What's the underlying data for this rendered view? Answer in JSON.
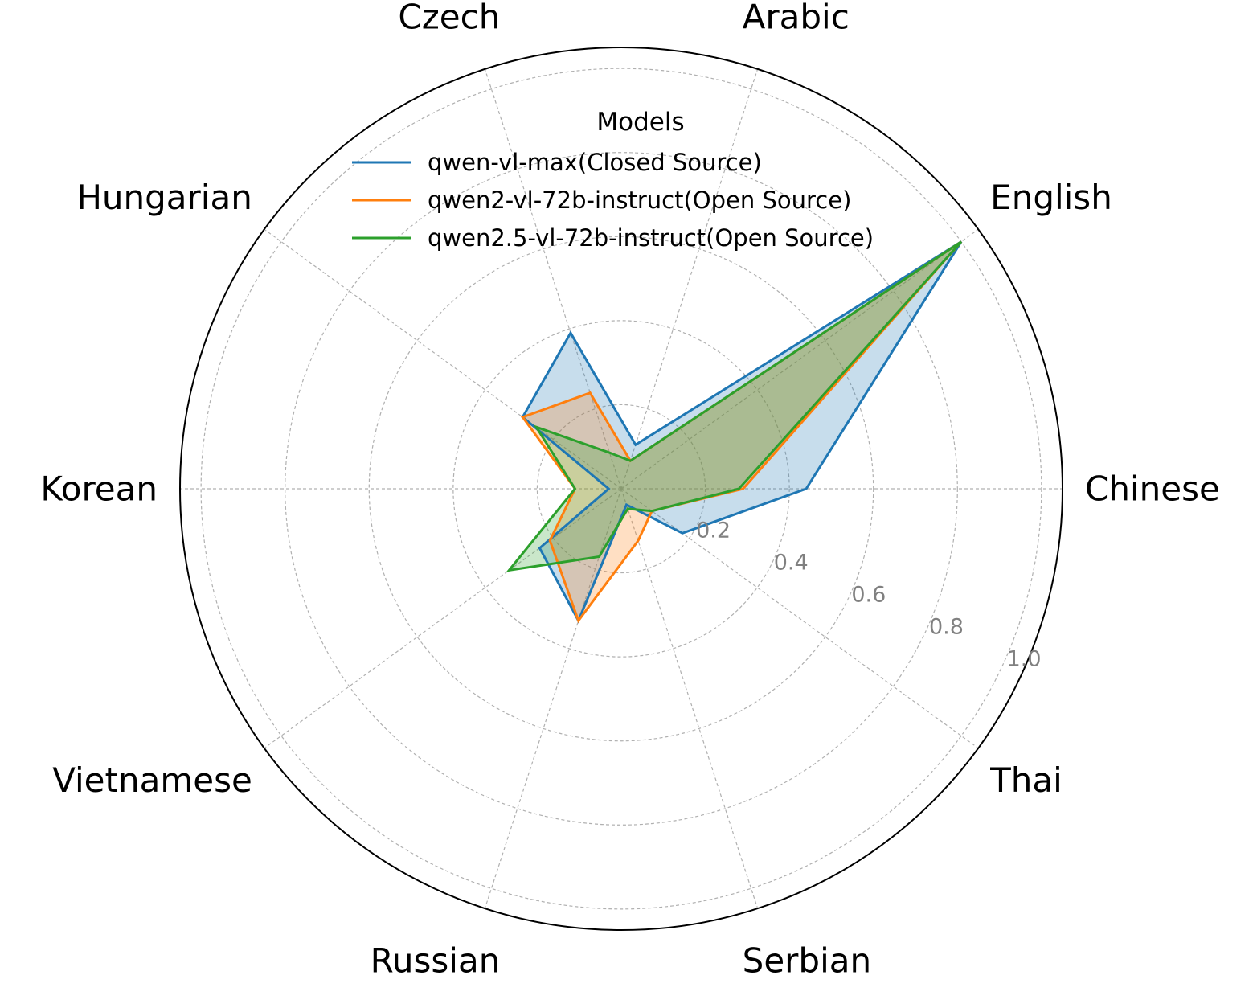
{
  "chart_data": {
    "type": "radar",
    "categories": [
      "Chinese",
      "English",
      "Arabic",
      "Czech",
      "Hungarian",
      "Korean",
      "Vietnamese",
      "Russian",
      "Serbian",
      "Thai"
    ],
    "rlim": [
      0,
      1.05
    ],
    "rticks": [
      0.2,
      0.4,
      0.6,
      0.8,
      1.0
    ],
    "rtick_labels": [
      "0.2",
      "0.4",
      "0.6",
      "0.8",
      "1.0"
    ],
    "grid": true,
    "legend": {
      "title": "Models",
      "position": "top-center"
    },
    "series": [
      {
        "name": "qwen-vl-max(Closed Source)",
        "color": "#1f77b4",
        "fill_opacity": 0.25,
        "values": [
          0.44,
          1.0,
          0.11,
          0.39,
          0.29,
          0.03,
          0.24,
          0.33,
          0.04,
          0.18
        ]
      },
      {
        "name": "qwen2-vl-72b-instruct(Open Source)",
        "color": "#ff7f0e",
        "fill_opacity": 0.25,
        "values": [
          0.29,
          1.0,
          0.07,
          0.24,
          0.29,
          0.11,
          0.21,
          0.33,
          0.13,
          0.09
        ]
      },
      {
        "name": "qwen2.5-vl-72b-instruct(Open Source)",
        "color": "#2ca02c",
        "fill_opacity": 0.25,
        "values": [
          0.28,
          1.0,
          0.07,
          0.09,
          0.25,
          0.11,
          0.33,
          0.17,
          0.05,
          0.09
        ]
      }
    ]
  }
}
